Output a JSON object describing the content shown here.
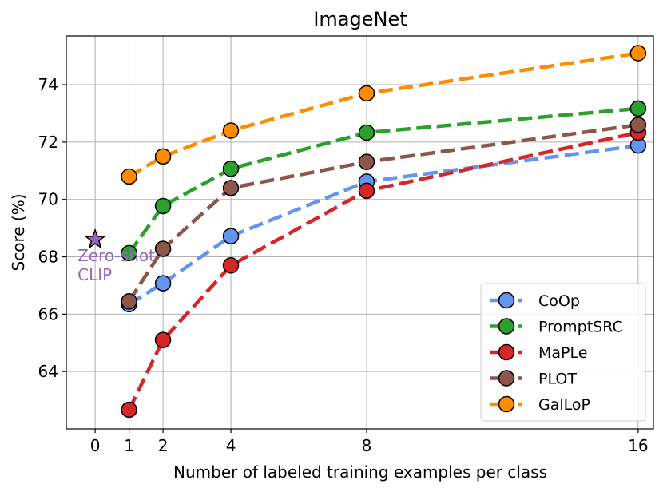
{
  "chart_data": {
    "type": "line",
    "title": "ImageNet",
    "xlabel": "Number of labeled training examples per class",
    "ylabel": "Score (%)",
    "x_ticks": [
      0,
      1,
      2,
      4,
      8,
      16
    ],
    "x_tick_labels": [
      "0",
      "1",
      "2",
      "4",
      "8",
      "16"
    ],
    "y_ticks": [
      64,
      66,
      68,
      70,
      72,
      74
    ],
    "y_tick_labels": [
      "64",
      "66",
      "68",
      "70",
      "72",
      "74"
    ],
    "xlim": [
      -0.85,
      16.45
    ],
    "ylim": [
      62.0,
      75.7
    ],
    "grid": true,
    "legend_position": "lower-right",
    "series": [
      {
        "name": "CoOp",
        "color": "#6495ed",
        "x": [
          1,
          2,
          4,
          8,
          16
        ],
        "y": [
          66.35,
          67.08,
          68.72,
          70.62,
          71.88
        ]
      },
      {
        "name": "PromptSRC",
        "color": "#2ca02c",
        "x": [
          1,
          2,
          4,
          8,
          16
        ],
        "y": [
          68.13,
          69.77,
          71.07,
          72.33,
          73.17
        ]
      },
      {
        "name": "MaPLe",
        "color": "#d62728",
        "x": [
          1,
          2,
          4,
          8,
          16
        ],
        "y": [
          62.67,
          65.1,
          67.7,
          70.3,
          72.33
        ]
      },
      {
        "name": "PLOT",
        "color": "#8c564b",
        "x": [
          1,
          2,
          4,
          8,
          16
        ],
        "y": [
          66.45,
          68.28,
          70.4,
          71.31,
          72.6
        ]
      },
      {
        "name": "GalLoP",
        "color": "#ff8c00",
        "x": [
          1,
          2,
          4,
          8,
          16
        ],
        "y": [
          70.8,
          71.5,
          72.4,
          73.7,
          75.1
        ]
      }
    ],
    "annotations": [
      {
        "marker": "star",
        "color": "#9467bd",
        "x": 0,
        "y": 68.6,
        "text_lines": [
          "Zero-shot",
          "CLIP"
        ]
      }
    ]
  }
}
